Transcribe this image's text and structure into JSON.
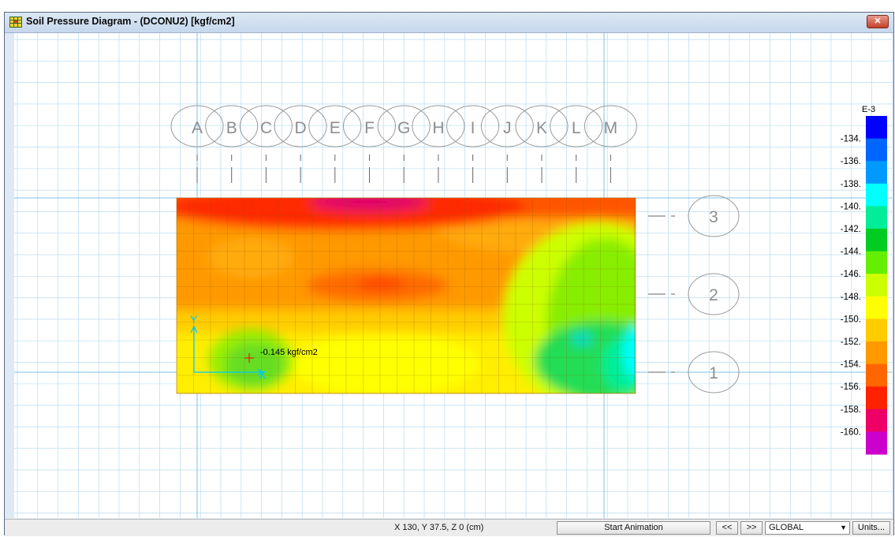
{
  "window": {
    "title": "Soil Pressure Diagram - (DCONU2)  [kgf/cm2]",
    "close_icon": "close-icon",
    "app_icon": "grid-app-icon"
  },
  "diagram": {
    "column_grid_labels": [
      "A",
      "B",
      "C",
      "D",
      "E",
      "F",
      "G",
      "H",
      "I",
      "J",
      "K",
      "L",
      "M"
    ],
    "row_grid_labels": [
      "3",
      "2",
      "1"
    ],
    "axis_x_label": "X",
    "axis_y_label": "Y",
    "probe_label": "-0.145 kgf/cm2",
    "colors": {
      "grid_line": "#b8dcf0",
      "grid_axis_line": "#7cc3e6",
      "bubble_stroke": "#9a9a9a",
      "axis_color": "#00c8ff",
      "probe_color": "#ff0000"
    }
  },
  "legend": {
    "exponent_label": "E-3",
    "tick_labels": [
      "-134.",
      "-136.",
      "-138.",
      "-140.",
      "-142.",
      "-144.",
      "-146.",
      "-148.",
      "-150.",
      "-152.",
      "-154.",
      "-156.",
      "-158.",
      "-160."
    ],
    "swatches": [
      "#0000ff",
      "#0066ff",
      "#0099ff",
      "#00ffff",
      "#00ee99",
      "#00cc22",
      "#66ee00",
      "#ccff00",
      "#ffff00",
      "#ffcc00",
      "#ff9900",
      "#ff6600",
      "#ff2200",
      "#ee0066",
      "#cc00cc"
    ]
  },
  "statusbar": {
    "coordinates": "X 130,  Y 37.5,  Z 0  (cm)",
    "start_animation": "Start Animation",
    "prev_label": "<<",
    "next_label": ">>",
    "coord_system": "GLOBAL",
    "units_label": "Units..."
  }
}
